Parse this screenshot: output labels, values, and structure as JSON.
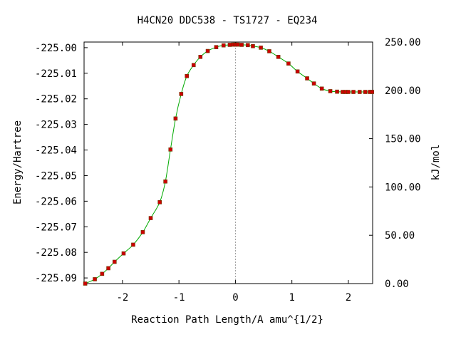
{
  "chart_data": {
    "type": "line",
    "title": "H4CN20   DDC538 - TS1727 - EQ234",
    "xlabel": "Reaction Path Length/A amu^{1/2}",
    "ylabel": "Energy/Hartree",
    "y2label": "kJ/mol",
    "xlim": [
      -2.68,
      2.43
    ],
    "ylim": [
      -225.0922,
      -224.9978
    ],
    "y2lim": [
      0.0,
      250.0
    ],
    "x_ticks": [
      {
        "value": -2,
        "label": "-2"
      },
      {
        "value": -1,
        "label": "-1"
      },
      {
        "value": 0,
        "label": "0"
      },
      {
        "value": 1,
        "label": "1"
      },
      {
        "value": 2,
        "label": "2"
      }
    ],
    "y_ticks": [
      {
        "value": -225.0,
        "label": "-225.00"
      },
      {
        "value": -225.01,
        "label": "-225.01"
      },
      {
        "value": -225.02,
        "label": "-225.02"
      },
      {
        "value": -225.03,
        "label": "-225.03"
      },
      {
        "value": -225.04,
        "label": "-225.04"
      },
      {
        "value": -225.05,
        "label": "-225.05"
      },
      {
        "value": -225.06,
        "label": "-225.06"
      },
      {
        "value": -225.07,
        "label": "-225.07"
      },
      {
        "value": -225.08,
        "label": "-225.08"
      },
      {
        "value": -225.09,
        "label": "-225.09"
      }
    ],
    "y2_ticks": [
      {
        "value": 0,
        "label": "0.00"
      },
      {
        "value": 50,
        "label": "50.00"
      },
      {
        "value": 100,
        "label": "100.00"
      },
      {
        "value": 150,
        "label": "150.00"
      },
      {
        "value": 200,
        "label": "200.00"
      },
      {
        "value": 250,
        "label": "250.00"
      }
    ],
    "ts_line_x": 0,
    "colors": {
      "curve": "#00aa00",
      "points": "#cc0000",
      "ts_line": "#999999"
    },
    "series": [
      {
        "points": [
          [
            -2.66,
            -225.0922
          ],
          [
            -2.49,
            -225.0905
          ],
          [
            -2.36,
            -225.0884
          ],
          [
            -2.25,
            -225.0862
          ],
          [
            -2.14,
            -225.0837
          ],
          [
            -1.98,
            -225.0804
          ],
          [
            -1.81,
            -225.077
          ],
          [
            -1.64,
            -225.0721
          ],
          [
            -1.5,
            -225.0666
          ],
          [
            -1.34,
            -225.0604
          ],
          [
            -1.24,
            -225.0523
          ],
          [
            -1.15,
            -225.0398
          ],
          [
            -1.06,
            -225.0277
          ],
          [
            -0.96,
            -225.0181
          ],
          [
            -0.86,
            -225.0111
          ],
          [
            -0.74,
            -225.0068
          ],
          [
            -0.62,
            -225.0036
          ],
          [
            -0.49,
            -225.0013
          ],
          [
            -0.34,
            -224.9998
          ],
          [
            -0.21,
            -224.9991
          ],
          [
            -0.1,
            -224.9989
          ],
          [
            -0.04,
            -224.9988
          ],
          [
            0.0,
            -224.9988
          ],
          [
            0.04,
            -224.9988
          ],
          [
            0.11,
            -224.9989
          ],
          [
            0.22,
            -224.999
          ],
          [
            0.31,
            -224.9994
          ],
          [
            0.45,
            -225.0
          ],
          [
            0.6,
            -225.0014
          ],
          [
            0.76,
            -225.0036
          ],
          [
            0.94,
            -225.0062
          ],
          [
            1.1,
            -225.0093
          ],
          [
            1.27,
            -225.012
          ],
          [
            1.39,
            -225.014
          ],
          [
            1.53,
            -225.016
          ],
          [
            1.68,
            -225.017
          ],
          [
            1.8,
            -225.0172
          ],
          [
            1.9,
            -225.0173
          ],
          [
            1.95,
            -225.0173
          ],
          [
            2.0,
            -225.0173
          ],
          [
            2.09,
            -225.0173
          ],
          [
            2.2,
            -225.0173
          ],
          [
            2.3,
            -225.0173
          ],
          [
            2.38,
            -225.0173
          ],
          [
            2.42,
            -225.0173
          ]
        ]
      }
    ]
  }
}
